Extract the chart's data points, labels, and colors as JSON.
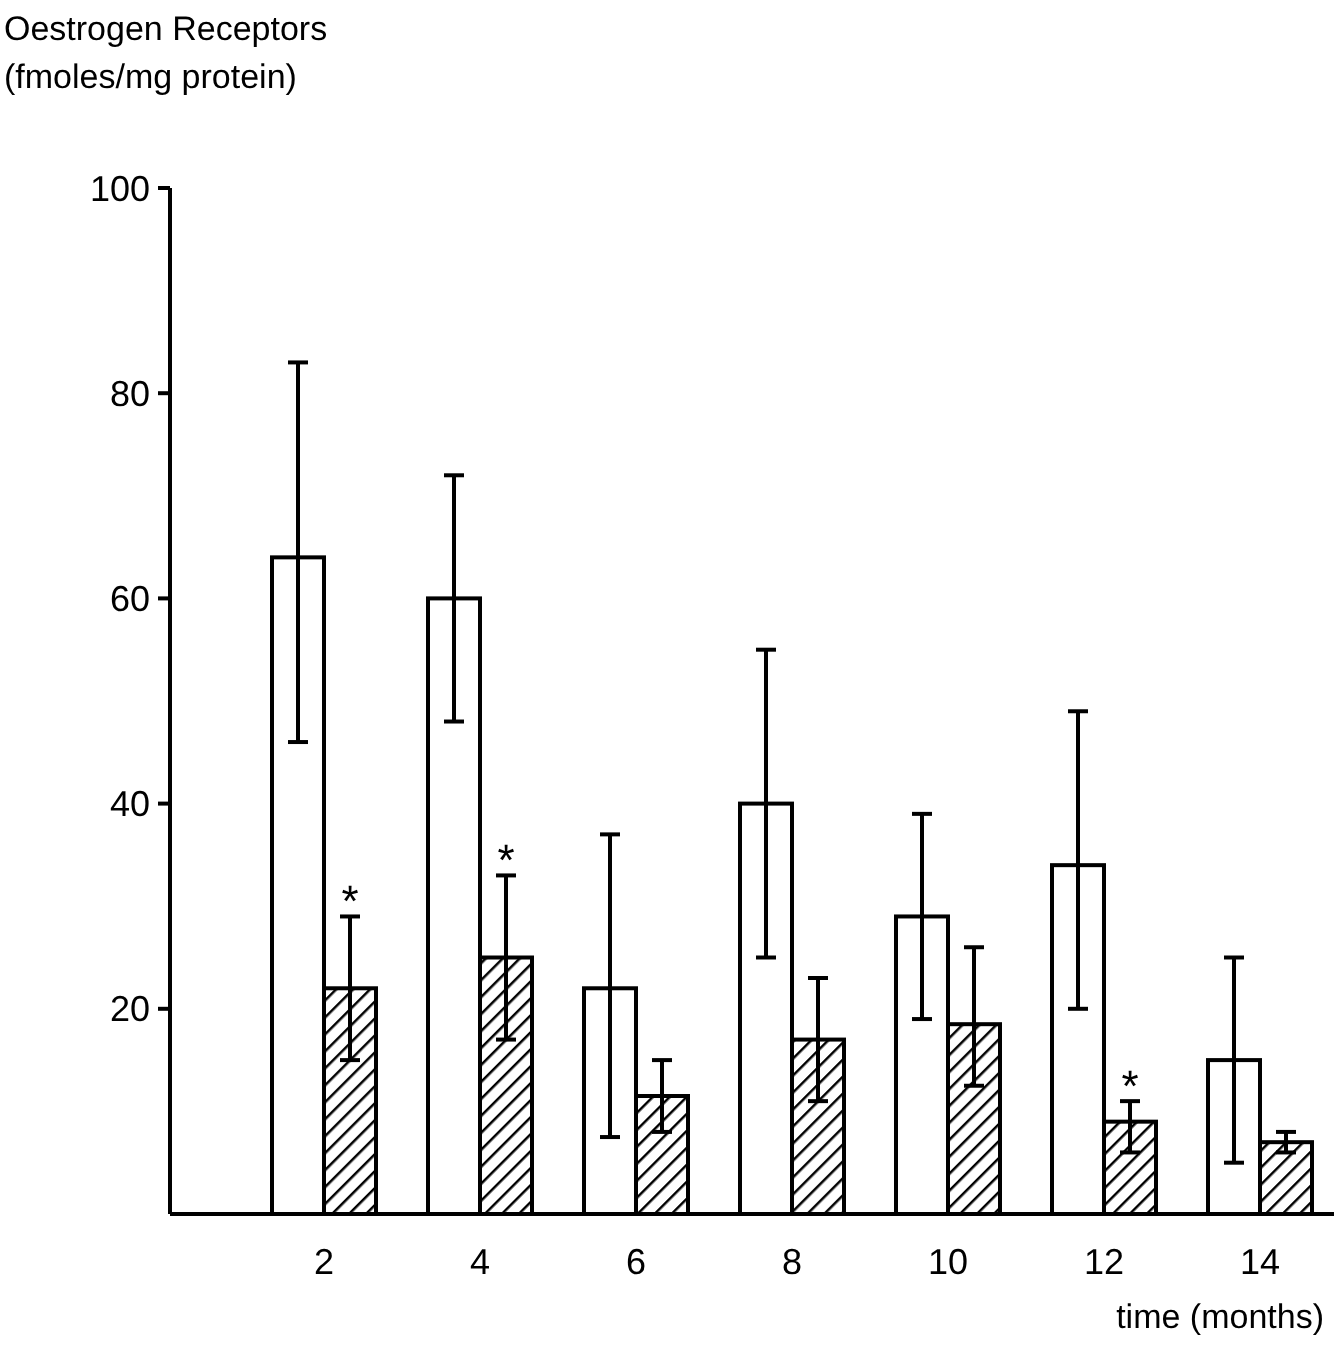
{
  "chart_data": {
    "type": "bar",
    "ylabel": "Oestrogen Receptors\n(fmoles/mg protein)",
    "xlabel": "time (months)",
    "categories": [
      "2",
      "4",
      "6",
      "8",
      "10",
      "12",
      "14"
    ],
    "series": [
      {
        "color": "#ffffff",
        "values": [
          64,
          60,
          22,
          40,
          29,
          34,
          15
        ],
        "errors": [
          [
            46,
            83
          ],
          [
            48,
            72
          ],
          [
            7.5,
            37
          ],
          [
            25,
            55
          ],
          [
            19,
            39
          ],
          [
            20,
            49
          ],
          [
            5,
            25
          ]
        ]
      },
      {
        "color": "#000000",
        "values": [
          22,
          25,
          11.5,
          17,
          18.5,
          9,
          7
        ],
        "errors": [
          [
            15,
            29
          ],
          [
            17,
            33
          ],
          [
            8,
            15
          ],
          [
            11,
            23
          ],
          [
            12.5,
            26
          ],
          [
            6,
            11
          ],
          [
            6,
            8
          ]
        ]
      }
    ],
    "annotations": [
      {
        "text": "*",
        "x": "2",
        "y": 31
      },
      {
        "text": "*",
        "x": "4",
        "y": 35
      },
      {
        "text": "*",
        "x": "12",
        "y": 13
      }
    ],
    "ylim": [
      0,
      100
    ],
    "yticks": [
      20,
      40,
      60,
      80,
      100
    ]
  }
}
